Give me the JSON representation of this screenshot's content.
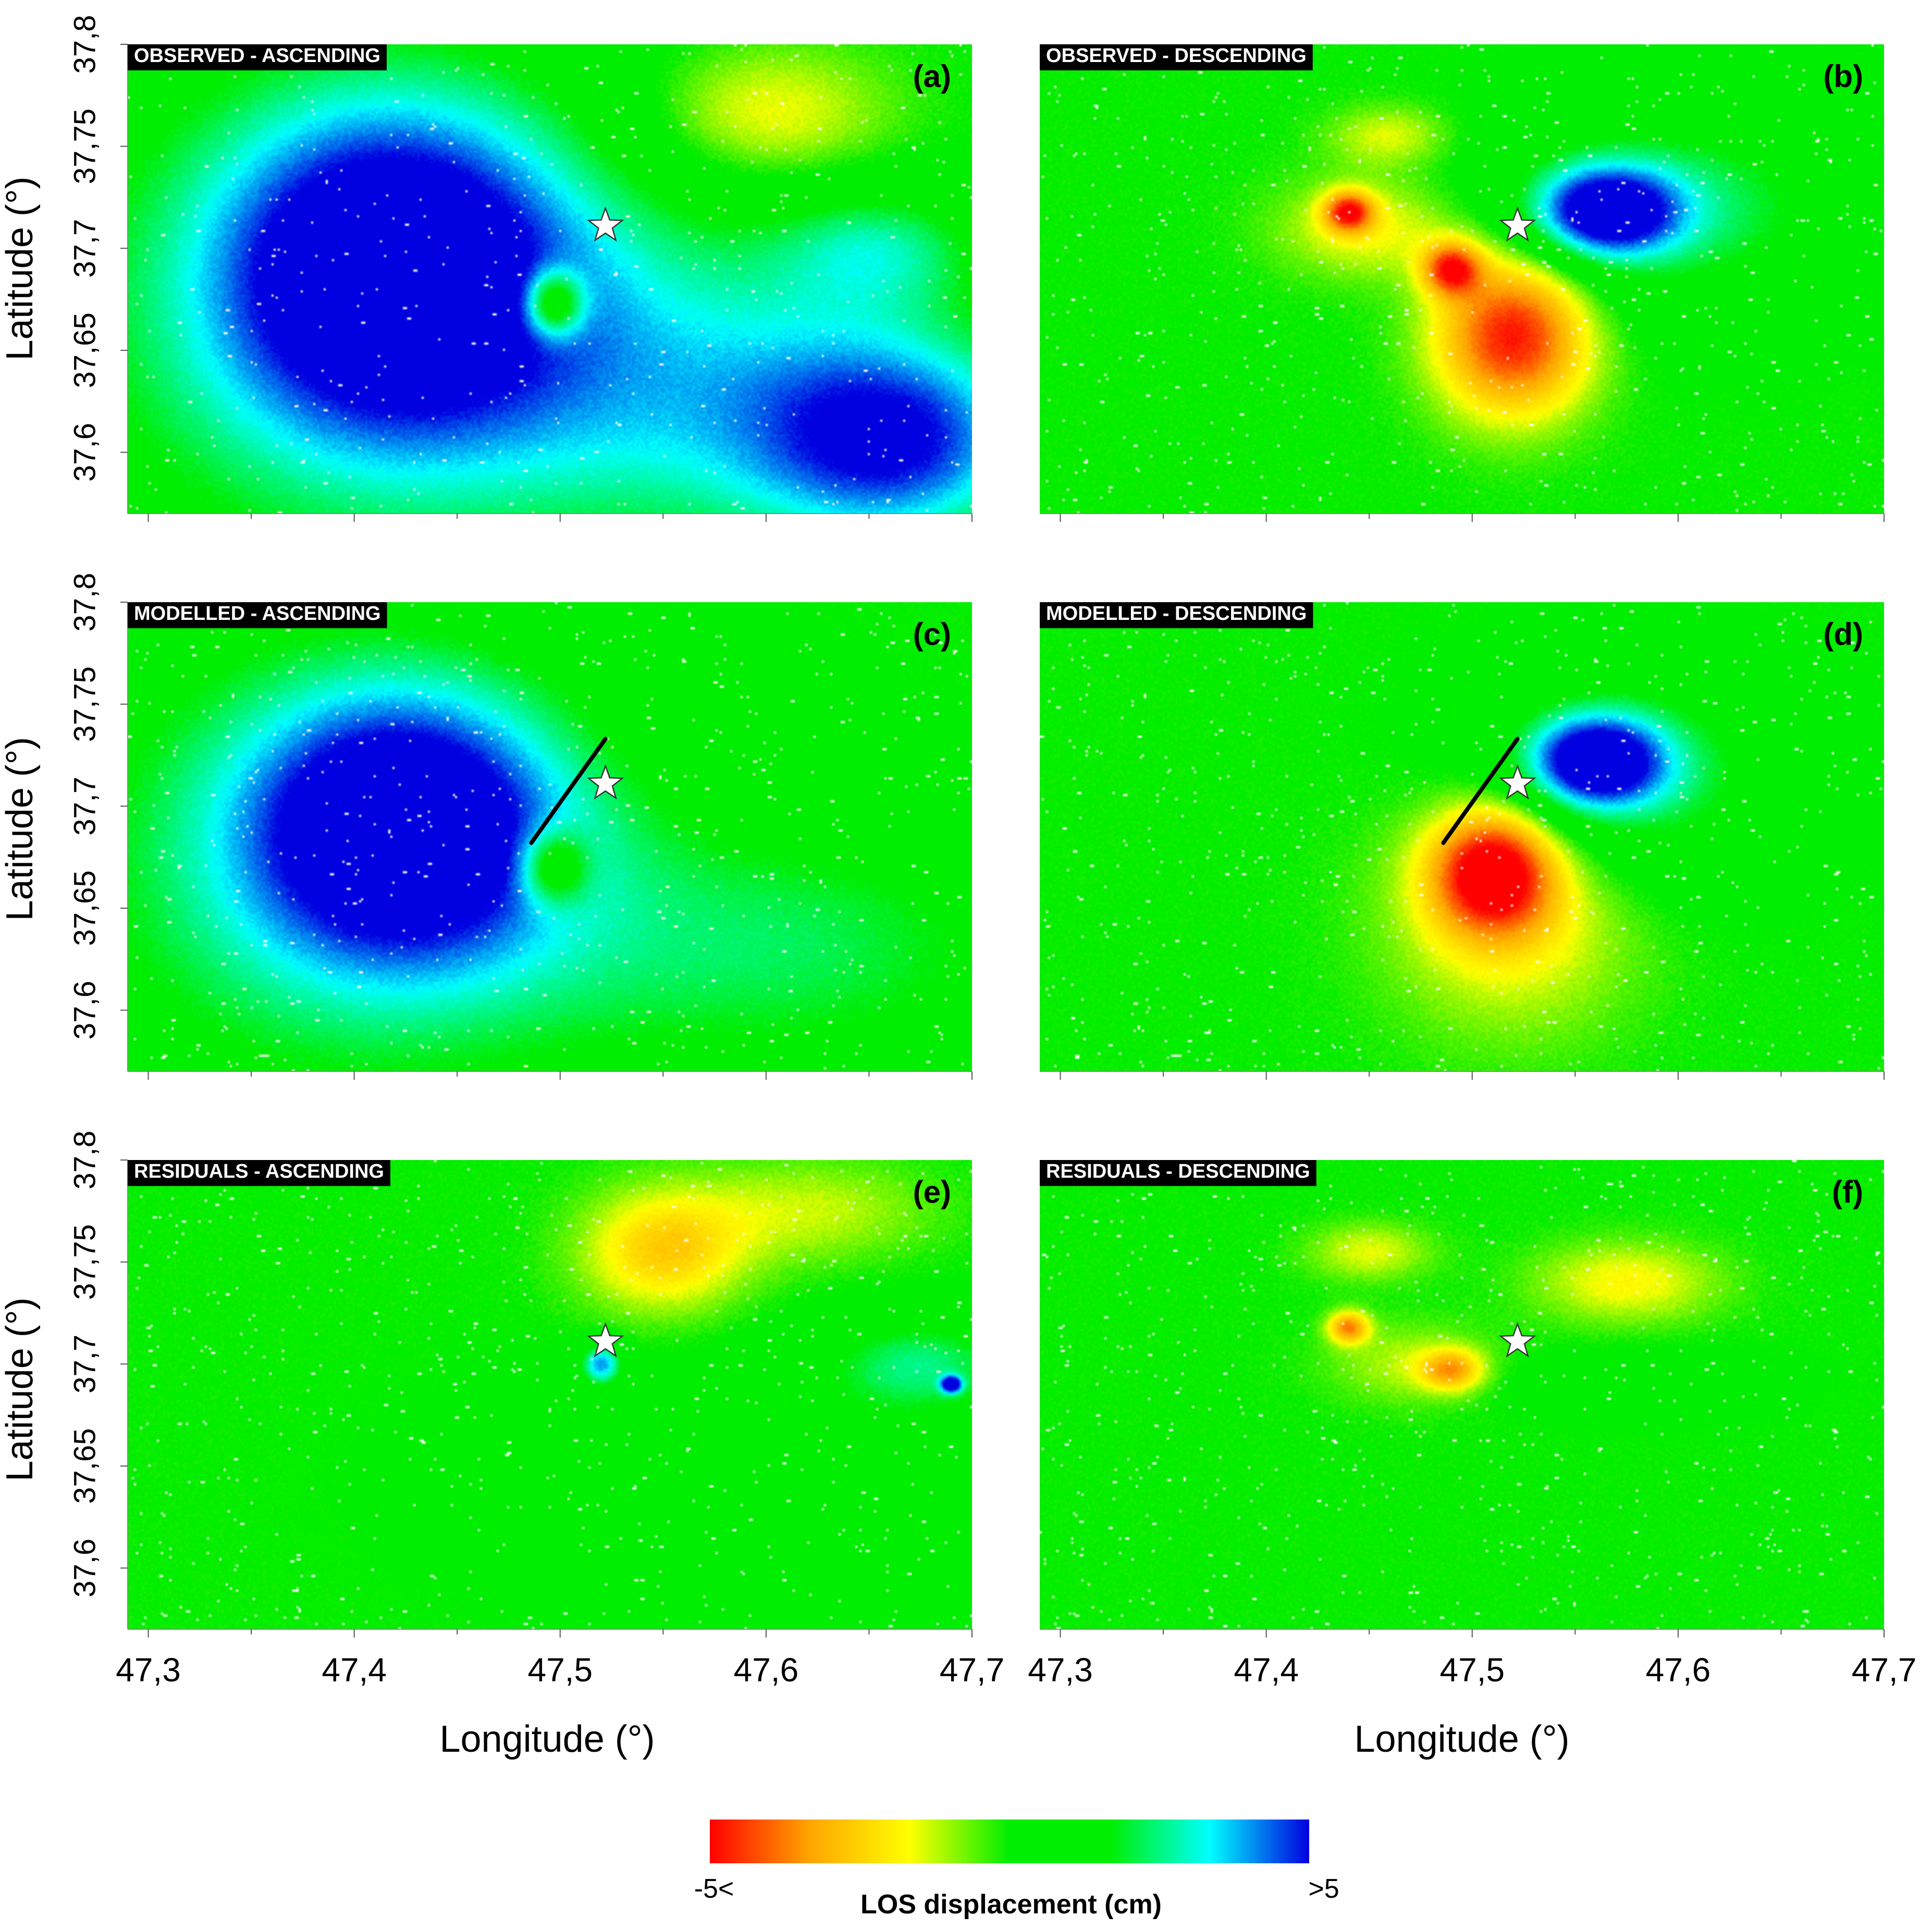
{
  "chart_data": {
    "type": "heatmap",
    "panels": [
      {
        "letter": "(a)",
        "label": "OBSERVED - ASCENDING",
        "row": 0,
        "col": 0,
        "blobs": [
          {
            "lon": 47.42,
            "lat": 37.69,
            "rlon": 0.085,
            "rlat": 0.08,
            "value": 5.0
          },
          {
            "lon": 47.4,
            "lat": 37.665,
            "rlon": 0.16,
            "rlat": 0.14,
            "value": 2.6
          },
          {
            "lon": 47.665,
            "lat": 37.605,
            "rlon": 0.07,
            "rlat": 0.05,
            "value": 4.0
          },
          {
            "lon": 47.58,
            "lat": 37.63,
            "rlon": 0.12,
            "rlat": 0.08,
            "value": 2.5
          },
          {
            "lon": 47.655,
            "lat": 37.7,
            "rlon": 0.05,
            "rlat": 0.03,
            "value": 2.0
          },
          {
            "lon": 47.497,
            "lat": 37.673,
            "rlon": 0.014,
            "rlat": 0.016,
            "value": -4.0
          },
          {
            "lon": 47.6,
            "lat": 37.765,
            "rlon": 0.06,
            "rlat": 0.035,
            "value": -2.0
          }
        ]
      },
      {
        "letter": "(b)",
        "label": "OBSERVED - DESCENDING",
        "row": 0,
        "col": 1,
        "blobs": [
          {
            "lon": 47.52,
            "lat": 37.658,
            "rlon": 0.038,
            "rlat": 0.04,
            "value": -5.0
          },
          {
            "lon": 47.49,
            "lat": 37.69,
            "rlon": 0.014,
            "rlat": 0.013,
            "value": -4.0
          },
          {
            "lon": 47.565,
            "lat": 37.718,
            "rlon": 0.035,
            "rlat": 0.022,
            "value": 5.0
          },
          {
            "lon": 47.6,
            "lat": 37.72,
            "rlon": 0.09,
            "rlat": 0.05,
            "value": 2.3
          },
          {
            "lon": 47.44,
            "lat": 37.718,
            "rlon": 0.012,
            "rlat": 0.01,
            "value": -4.0
          },
          {
            "lon": 47.45,
            "lat": 37.71,
            "rlon": 0.045,
            "rlat": 0.025,
            "value": -1.8
          },
          {
            "lon": 47.46,
            "lat": 37.755,
            "rlon": 0.03,
            "rlat": 0.015,
            "value": -1.5
          }
        ]
      },
      {
        "letter": "(c)",
        "label": "MODELLED - ASCENDING",
        "row": 1,
        "col": 0,
        "blobs": [
          {
            "lon": 47.425,
            "lat": 37.69,
            "rlon": 0.075,
            "rlat": 0.065,
            "value": 5.0
          },
          {
            "lon": 47.39,
            "lat": 37.67,
            "rlon": 0.15,
            "rlat": 0.13,
            "value": 2.6
          },
          {
            "lon": 47.62,
            "lat": 37.63,
            "rlon": 0.14,
            "rlat": 0.07,
            "value": 2.0
          },
          {
            "lon": 47.497,
            "lat": 37.67,
            "rlon": 0.016,
            "rlat": 0.018,
            "value": -3.0
          }
        ]
      },
      {
        "letter": "(d)",
        "label": "MODELLED - DESCENDING",
        "row": 1,
        "col": 1,
        "blobs": [
          {
            "lon": 47.51,
            "lat": 37.668,
            "rlon": 0.03,
            "rlat": 0.03,
            "value": -5.0
          },
          {
            "lon": 47.52,
            "lat": 37.65,
            "rlon": 0.06,
            "rlat": 0.06,
            "value": -2.0
          },
          {
            "lon": 47.56,
            "lat": 37.722,
            "rlon": 0.032,
            "rlat": 0.022,
            "value": 5.0
          },
          {
            "lon": 47.575,
            "lat": 37.715,
            "rlon": 0.075,
            "rlat": 0.05,
            "value": 2.5
          }
        ]
      },
      {
        "letter": "(e)",
        "label": "RESIDUALS - ASCENDING",
        "row": 2,
        "col": 0,
        "blobs": [
          {
            "lon": 47.55,
            "lat": 37.755,
            "rlon": 0.04,
            "rlat": 0.03,
            "value": -2.5
          },
          {
            "lon": 47.62,
            "lat": 37.775,
            "rlon": 0.06,
            "rlat": 0.025,
            "value": -1.3
          },
          {
            "lon": 47.52,
            "lat": 37.7,
            "rlon": 0.01,
            "rlat": 0.01,
            "value": 3.8
          },
          {
            "lon": 47.6,
            "lat": 37.64,
            "rlon": 0.12,
            "rlat": 0.05,
            "value": 1.6
          },
          {
            "lon": 47.675,
            "lat": 37.7,
            "rlon": 0.05,
            "rlat": 0.025,
            "value": 2.3
          },
          {
            "lon": 47.69,
            "lat": 37.69,
            "rlon": 0.005,
            "rlat": 0.004,
            "value": 5.0
          }
        ]
      },
      {
        "letter": "(f)",
        "label": "RESIDUALS - DESCENDING",
        "row": 2,
        "col": 1,
        "blobs": [
          {
            "lon": 47.45,
            "lat": 37.755,
            "rlon": 0.03,
            "rlat": 0.014,
            "value": -1.5
          },
          {
            "lon": 47.575,
            "lat": 37.74,
            "rlon": 0.045,
            "rlat": 0.02,
            "value": -1.8
          },
          {
            "lon": 47.44,
            "lat": 37.718,
            "rlon": 0.01,
            "rlat": 0.008,
            "value": -3.5
          },
          {
            "lon": 47.49,
            "lat": 37.697,
            "rlon": 0.015,
            "rlat": 0.01,
            "value": -2.8
          },
          {
            "lon": 47.47,
            "lat": 37.7,
            "rlon": 0.04,
            "rlat": 0.02,
            "value": -1.2
          },
          {
            "lon": 47.58,
            "lat": 37.69,
            "rlon": 0.06,
            "rlat": 0.015,
            "value": 0.9
          }
        ]
      }
    ],
    "epicenter": {
      "lon": 47.522,
      "lat": 37.711
    },
    "fault_trace": {
      "start": {
        "lon": 47.486,
        "lat": 37.682
      },
      "end": {
        "lon": 47.522,
        "lat": 37.733
      },
      "panels": [
        "(c)",
        "(d)"
      ]
    },
    "xlim": [
      47.29,
      47.7
    ],
    "ylim": [
      37.57,
      37.8
    ],
    "xticks": [
      47.3,
      47.4,
      47.5,
      47.6,
      47.7
    ],
    "yticks": [
      37.6,
      37.65,
      37.7,
      37.75,
      37.8
    ],
    "xtick_labels": [
      "47,3",
      "47,4",
      "47,5",
      "47,6",
      "47,7"
    ],
    "ytick_labels": [
      "37,6",
      "37,65",
      "37,7",
      "37,75",
      "37,8"
    ],
    "xlabel": "Longitude (°)",
    "ylabel": "Latitude (°)",
    "colorbar": {
      "label": "LOS displacement (cm)",
      "min_label": "-5<",
      "max_label": ">5",
      "range": [
        -5,
        5
      ],
      "stops": [
        "#ff0000",
        "#ffa500",
        "#ffff00",
        "#00ee00",
        "#00ee00",
        "#00ffff",
        "#0000e0"
      ]
    },
    "colors": {
      "background_field": "#00ee00",
      "gap": "#ffffff",
      "label_box": "#000000"
    }
  }
}
